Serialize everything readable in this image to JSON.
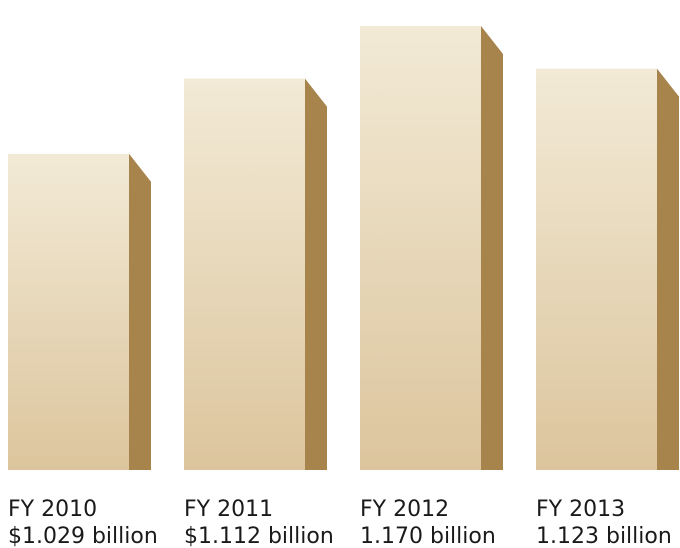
{
  "chart_data": {
    "type": "bar",
    "categories": [
      "FY 2010",
      "FY 2011",
      "FY 2012",
      "FY 2013"
    ],
    "values": [
      1.029,
      1.112,
      1.17,
      1.123
    ],
    "value_labels": [
      "$1.029 billion",
      "$1.112 billion",
      "1.170 billion",
      "1.123 billion"
    ],
    "style": "3d-bars",
    "grid": false,
    "legend": "none"
  },
  "colors": {
    "bar_front_top": "#f2ead6",
    "bar_front_bottom": "#dcc59d",
    "bar_side": "#a8844d",
    "text": "#1a1a1a"
  }
}
